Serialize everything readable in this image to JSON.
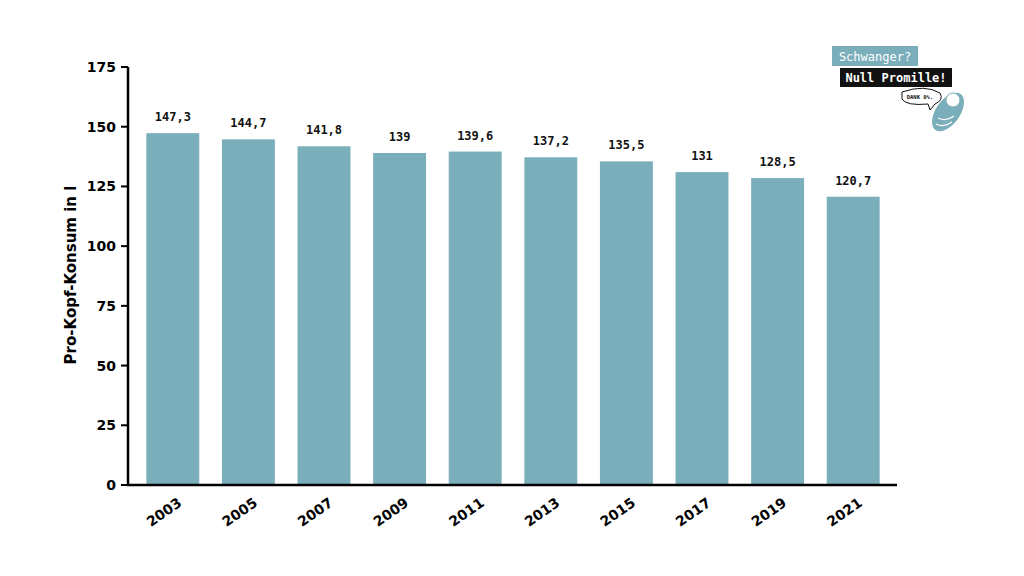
{
  "chart_data": {
    "type": "bar",
    "y_label": "Pro-Kopf-Konsum in l",
    "annotations": [
      "Schwanger?",
      "Null Promille!",
      "DANK 0%."
    ],
    "categories": [
      "2003",
      "2005",
      "2007",
      "2009",
      "2011",
      "2013",
      "2015",
      "2017",
      "2019",
      "2021"
    ],
    "values": [
      147.3,
      144.7,
      141.8,
      139,
      139.6,
      137.2,
      135.5,
      131,
      128.5,
      120.7
    ],
    "value_labels": [
      "147,3",
      "144,7",
      "141,8",
      "139",
      "139,6",
      "137,2",
      "135,5",
      "131",
      "128,5",
      "120,7"
    ],
    "color": "#7baebb",
    "ylim": [
      0,
      175
    ],
    "yticks": [
      0,
      25,
      50,
      75,
      100,
      125,
      150,
      175
    ],
    "grid": false,
    "data_labels": true
  }
}
